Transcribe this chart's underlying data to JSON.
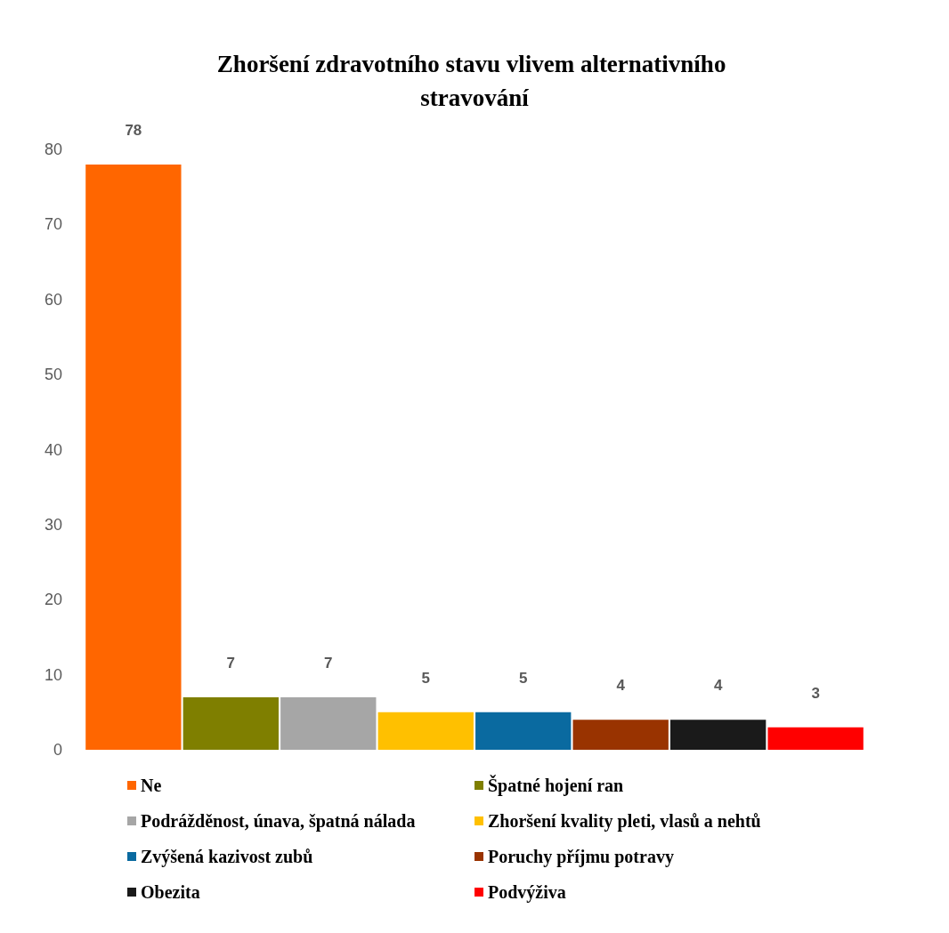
{
  "chart_data": {
    "type": "bar",
    "title": "Zhoršení zdravotního stavu vlivem alternativního stravování",
    "categories": [
      null
    ],
    "series": [
      {
        "name": "Ne",
        "color": "#ff6600",
        "values": [
          78
        ]
      },
      {
        "name": "Špatné hojení ran",
        "color": "#7f7f00",
        "values": [
          7
        ]
      },
      {
        "name": "Podrážděnost, únava, špatná nálada",
        "color": "#a6a6a6",
        "values": [
          7
        ]
      },
      {
        "name": "Zhoršení kvality pleti, vlasů a nehtů",
        "color": "#ffc000",
        "values": [
          5
        ]
      },
      {
        "name": "Zvýšená kazivost zubů",
        "color": "#0a6aa0",
        "values": [
          5
        ]
      },
      {
        "name": "Poruchy příjmu potravy",
        "color": "#993300",
        "values": [
          4
        ]
      },
      {
        "name": "Obezita",
        "color": "#1a1a1a",
        "values": [
          4
        ]
      },
      {
        "name": "Podvýživa",
        "color": "#ff0000",
        "values": [
          3
        ]
      }
    ],
    "ylim": [
      0,
      80
    ],
    "yticks": [
      0,
      10,
      20,
      30,
      40,
      50,
      60,
      70,
      80
    ],
    "grid": false,
    "data_labels": true,
    "legend": "bottom"
  }
}
